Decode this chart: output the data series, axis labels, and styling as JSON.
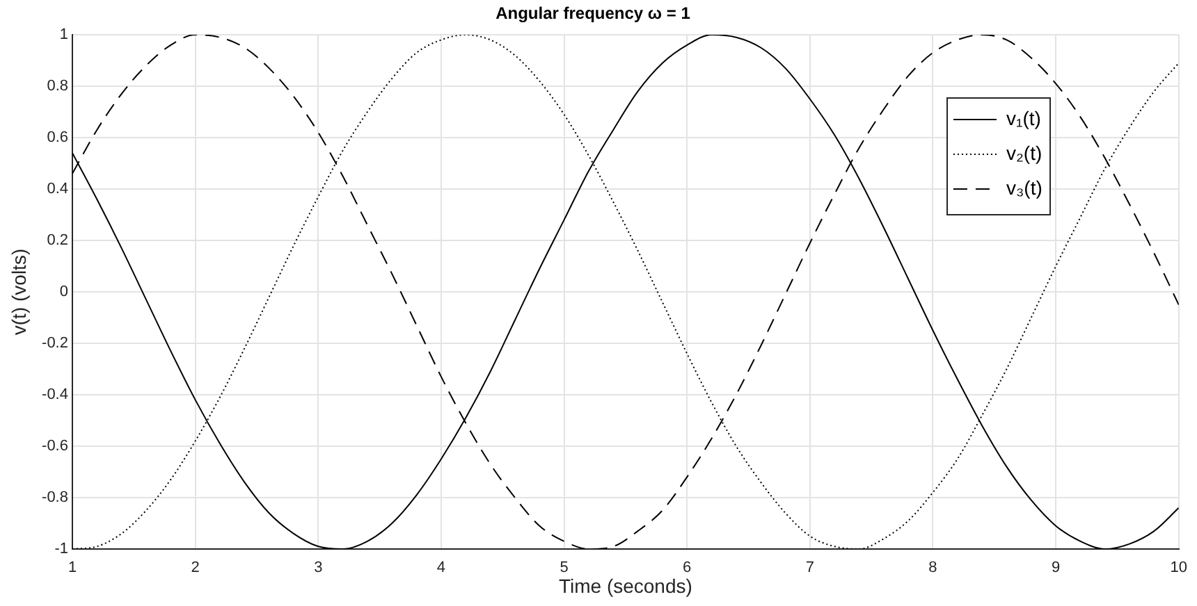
{
  "chart_data": {
    "type": "line",
    "title": "Angular frequency ω = 1",
    "xlabel": "Time (seconds)",
    "ylabel": "v(t) (volts)",
    "x": [
      1,
      1.2,
      1.4,
      1.6,
      1.8,
      2,
      2.2,
      2.4,
      2.6,
      2.8,
      3,
      3.2,
      3.4,
      3.6,
      3.8,
      4,
      4.2,
      4.4,
      4.6,
      4.8,
      5,
      5.2,
      5.4,
      5.6,
      5.8,
      6,
      6.2,
      6.4,
      6.6,
      6.8,
      7,
      7.2,
      7.4,
      7.6,
      7.8,
      8,
      8.2,
      8.4,
      8.6,
      8.8,
      9,
      9.2,
      9.4,
      9.6,
      9.8,
      10
    ],
    "series": [
      {
        "name": "v₁(t)",
        "color": "#000000",
        "line_style": "solid",
        "values": [
          0.54,
          0.36,
          0.17,
          -0.03,
          -0.23,
          -0.42,
          -0.59,
          -0.74,
          -0.86,
          -0.94,
          -0.99,
          -1,
          -0.97,
          -0.9,
          -0.79,
          -0.65,
          -0.49,
          -0.31,
          -0.11,
          0.09,
          0.28,
          0.47,
          0.63,
          0.78,
          0.89,
          0.96,
          1,
          0.99,
          0.95,
          0.87,
          0.75,
          0.61,
          0.44,
          0.25,
          0.05,
          -0.15,
          -0.34,
          -0.52,
          -0.68,
          -0.81,
          -0.91,
          -0.97,
          -1,
          -0.98,
          -0.93,
          -0.84
        ]
      },
      {
        "name": "v₂(t)",
        "color": "#000000",
        "line_style": "dotted",
        "values": [
          -1,
          -0.99,
          -0.94,
          -0.85,
          -0.73,
          -0.58,
          -0.41,
          -0.22,
          -0.02,
          0.18,
          0.37,
          0.55,
          0.7,
          0.83,
          0.93,
          0.98,
          1,
          0.98,
          0.92,
          0.82,
          0.69,
          0.53,
          0.35,
          0.16,
          -0.04,
          -0.24,
          -0.43,
          -0.6,
          -0.74,
          -0.86,
          -0.95,
          -0.99,
          -1,
          -0.96,
          -0.89,
          -0.78,
          -0.65,
          -0.48,
          -0.3,
          -0.1,
          0.1,
          0.29,
          0.48,
          0.64,
          0.78,
          0.89
        ]
      },
      {
        "name": "v₃(t)",
        "color": "#000000",
        "line_style": "dashed",
        "values": [
          0.46,
          0.63,
          0.77,
          0.88,
          0.96,
          1,
          0.99,
          0.95,
          0.87,
          0.76,
          0.62,
          0.45,
          0.26,
          0.07,
          -0.13,
          -0.33,
          -0.51,
          -0.67,
          -0.8,
          -0.91,
          -0.97,
          -1,
          -0.99,
          -0.93,
          -0.85,
          -0.72,
          -0.57,
          -0.4,
          -0.21,
          -0.01,
          0.19,
          0.38,
          0.56,
          0.71,
          0.84,
          0.93,
          0.98,
          1,
          0.98,
          0.91,
          0.81,
          0.68,
          0.52,
          0.34,
          0.15,
          -0.05
        ]
      }
    ],
    "xlim": [
      1,
      10
    ],
    "xticks": [
      1,
      2,
      3,
      4,
      5,
      6,
      7,
      8,
      9,
      10
    ],
    "ylim": [
      -1,
      1
    ],
    "yticks": [
      -1,
      -0.8,
      -0.6,
      -0.4,
      -0.2,
      0,
      0.2,
      0.4,
      0.6,
      0.8,
      1
    ],
    "grid": true,
    "legend": "top right"
  }
}
